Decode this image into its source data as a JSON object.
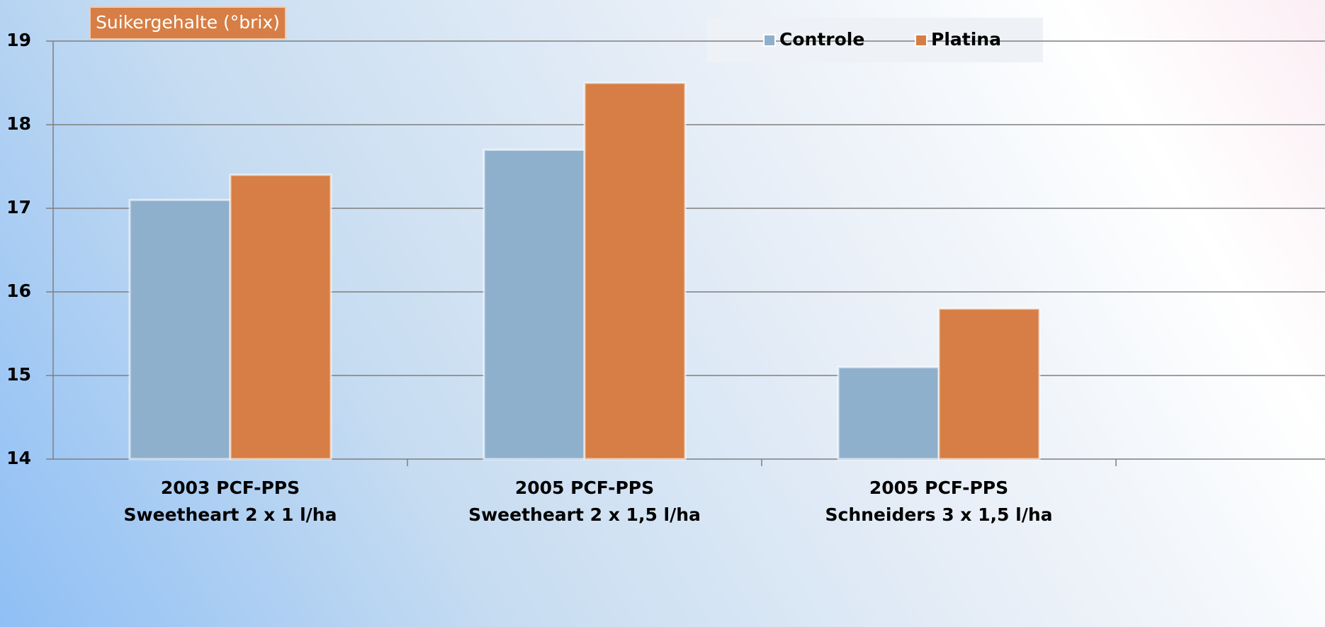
{
  "chart_data": {
    "type": "bar",
    "title": "Suikergehalte (°brix)",
    "categories": [
      "2003 PCF-PPS\nSweetheart 2 x 1 l/ha",
      "2005 PCF-PPS\nSweetheart 2 x 1,5 l/ha",
      "2005 PCF-PPS\nSchneiders 3 x 1,5 l/ha"
    ],
    "series": [
      {
        "name": "Controle",
        "color": "#8fb0cc",
        "values": [
          17.1,
          17.7,
          15.1
        ]
      },
      {
        "name": "Platina",
        "color": "#d67e45",
        "values": [
          17.4,
          18.5,
          15.8
        ]
      }
    ],
    "ylim": [
      14,
      19
    ],
    "yticks": [
      14,
      15,
      16,
      17,
      18,
      19
    ],
    "grid": true,
    "legend": "top-right"
  }
}
